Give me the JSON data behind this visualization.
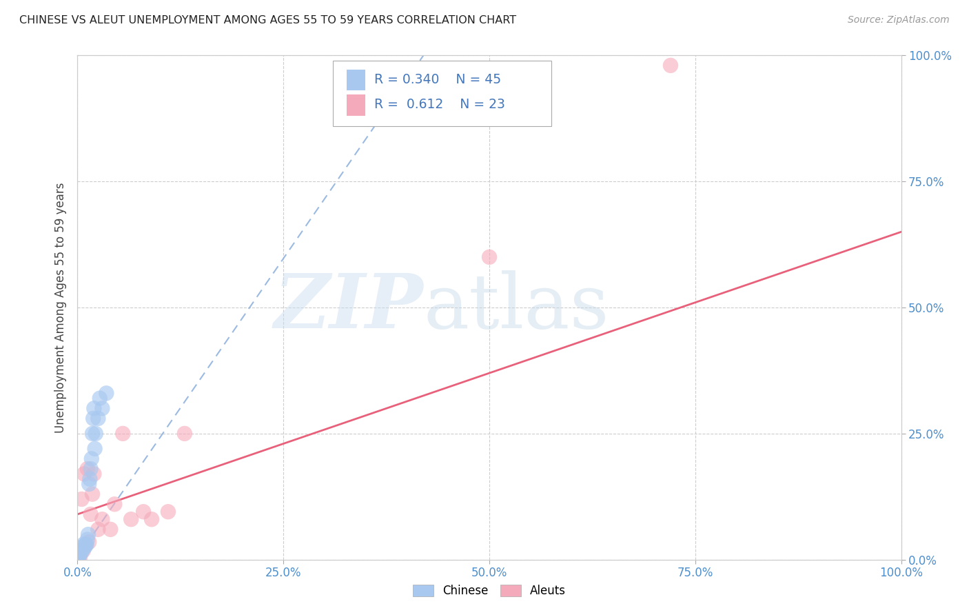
{
  "title": "CHINESE VS ALEUT UNEMPLOYMENT AMONG AGES 55 TO 59 YEARS CORRELATION CHART",
  "source": "Source: ZipAtlas.com",
  "ylabel": "Unemployment Among Ages 55 to 59 years",
  "xlim": [
    0,
    1.0
  ],
  "ylim": [
    0,
    1.0
  ],
  "xticks": [
    0.0,
    0.25,
    0.5,
    0.75,
    1.0
  ],
  "yticks": [
    0.0,
    0.25,
    0.5,
    0.75,
    1.0
  ],
  "xticklabels": [
    "0.0%",
    "25.0%",
    "50.0%",
    "75.0%",
    "100.0%"
  ],
  "yticklabels": [
    "0.0%",
    "25.0%",
    "50.0%",
    "75.0%",
    "100.0%"
  ],
  "chinese_R": 0.34,
  "chinese_N": 45,
  "aleut_R": 0.612,
  "aleut_N": 23,
  "chinese_color": "#A8C8F0",
  "aleut_color": "#F5AABB",
  "chinese_line_color": "#8AAEDD",
  "aleut_line_color": "#E8607A",
  "chinese_line_x0": 0.0,
  "chinese_line_y0": 0.005,
  "chinese_line_x1": 0.42,
  "chinese_line_y1": 1.0,
  "aleut_line_x0": 0.0,
  "aleut_line_y0": 0.09,
  "aleut_line_x1": 1.0,
  "aleut_line_y1": 0.65,
  "chinese_points_x": [
    0.0,
    0.0,
    0.0,
    0.0,
    0.0,
    0.0,
    0.0,
    0.0,
    0.0,
    0.0,
    0.0,
    0.0,
    0.0,
    0.0,
    0.0,
    0.0,
    0.0,
    0.0,
    0.002,
    0.002,
    0.003,
    0.004,
    0.005,
    0.005,
    0.006,
    0.007,
    0.008,
    0.009,
    0.01,
    0.011,
    0.012,
    0.013,
    0.014,
    0.015,
    0.016,
    0.017,
    0.018,
    0.019,
    0.02,
    0.021,
    0.022,
    0.025,
    0.027,
    0.03,
    0.035
  ],
  "chinese_points_y": [
    0.0,
    0.0,
    0.0,
    0.0,
    0.0,
    0.0,
    0.0,
    0.0,
    0.002,
    0.003,
    0.004,
    0.005,
    0.005,
    0.006,
    0.007,
    0.008,
    0.01,
    0.012,
    0.005,
    0.015,
    0.01,
    0.02,
    0.015,
    0.025,
    0.02,
    0.03,
    0.025,
    0.025,
    0.03,
    0.03,
    0.04,
    0.05,
    0.15,
    0.16,
    0.18,
    0.2,
    0.25,
    0.28,
    0.3,
    0.22,
    0.25,
    0.28,
    0.32,
    0.3,
    0.33
  ],
  "aleut_points_x": [
    0.0,
    0.003,
    0.005,
    0.007,
    0.008,
    0.01,
    0.012,
    0.014,
    0.016,
    0.018,
    0.02,
    0.025,
    0.03,
    0.04,
    0.045,
    0.055,
    0.065,
    0.08,
    0.09,
    0.11,
    0.13,
    0.5,
    0.72
  ],
  "aleut_points_y": [
    0.0,
    0.005,
    0.12,
    0.018,
    0.17,
    0.03,
    0.18,
    0.035,
    0.09,
    0.13,
    0.17,
    0.06,
    0.08,
    0.06,
    0.11,
    0.25,
    0.08,
    0.095,
    0.08,
    0.095,
    0.25,
    0.6,
    0.98
  ]
}
